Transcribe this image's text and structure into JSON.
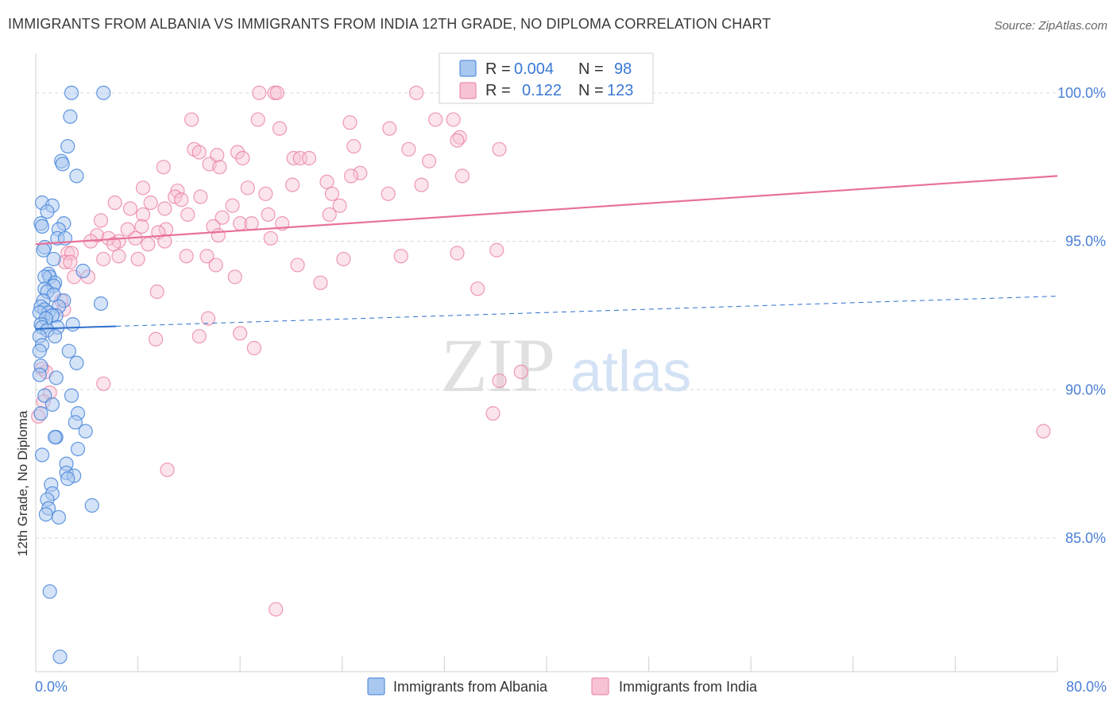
{
  "title": "IMMIGRANTS FROM ALBANIA VS IMMIGRANTS FROM INDIA 12TH GRADE, NO DIPLOMA CORRELATION CHART",
  "source": "Source: ZipAtlas.com",
  "watermark": {
    "zip": "ZIP",
    "atlas": "atlas"
  },
  "colors": {
    "albania_fill": "#a9c8f0",
    "albania_stroke": "#3f7fd9",
    "albania_line": "#2f6fce",
    "india_fill": "#f7c3d4",
    "india_stroke": "#e9799f",
    "india_line": "#e8709a",
    "tick_text": "#4a7fd6",
    "grid": "#d9d9d9"
  },
  "legend": {
    "rows": [
      {
        "r_label": "R =",
        "r_value": "0.004",
        "n_label": "N =",
        "n_value": "98"
      },
      {
        "r_label": "R =",
        "r_value": "0.122",
        "n_label": "N =",
        "n_value": "123"
      }
    ]
  },
  "chart_data": {
    "type": "scatter",
    "title": "IMMIGRANTS FROM ALBANIA VS IMMIGRANTS FROM INDIA 12TH GRADE, NO DIPLOMA CORRELATION CHART",
    "xlabel": "",
    "ylabel": "12th Grade, No Diploma",
    "xlim": [
      0,
      80
    ],
    "ylim": [
      80.5,
      101.0
    ],
    "x_tick_labels": [
      "0.0%",
      "80.0%"
    ],
    "y_ticks": [
      85,
      90,
      95,
      100
    ],
    "y_tick_labels": [
      "85.0%",
      "90.0%",
      "95.0%",
      "100.0%"
    ],
    "legend_position": "top-center",
    "series": [
      {
        "name": "Immigrants from Albania",
        "R": 0.004,
        "N": 98,
        "trend": {
          "x0": 0,
          "y0": 92.05,
          "x1": 80,
          "y1": 93.15,
          "solid_until": 6.3
        },
        "points": [
          [
            2.8,
            100.0
          ],
          [
            5.3,
            100.0
          ],
          [
            2.7,
            99.2
          ],
          [
            2.5,
            98.2
          ],
          [
            2.0,
            97.7
          ],
          [
            2.1,
            97.6
          ],
          [
            3.2,
            97.2
          ],
          [
            0.5,
            96.3
          ],
          [
            1.3,
            96.2
          ],
          [
            0.9,
            96.0
          ],
          [
            0.4,
            95.6
          ],
          [
            2.2,
            95.6
          ],
          [
            0.5,
            95.5
          ],
          [
            1.8,
            95.4
          ],
          [
            1.7,
            95.1
          ],
          [
            2.3,
            95.1
          ],
          [
            0.7,
            94.8
          ],
          [
            0.6,
            94.7
          ],
          [
            1.4,
            94.4
          ],
          [
            3.7,
            94.0
          ],
          [
            1.0,
            93.9
          ],
          [
            1.1,
            93.8
          ],
          [
            0.7,
            93.8
          ],
          [
            1.5,
            93.6
          ],
          [
            1.4,
            93.5
          ],
          [
            0.7,
            93.4
          ],
          [
            0.9,
            93.3
          ],
          [
            1.4,
            93.2
          ],
          [
            2.2,
            93.0
          ],
          [
            0.6,
            93.0
          ],
          [
            5.1,
            92.9
          ],
          [
            0.4,
            92.8
          ],
          [
            1.8,
            92.8
          ],
          [
            0.7,
            92.7
          ],
          [
            1.0,
            92.6
          ],
          [
            0.3,
            92.6
          ],
          [
            1.6,
            92.5
          ],
          [
            1.3,
            92.5
          ],
          [
            0.8,
            92.4
          ],
          [
            2.9,
            92.2
          ],
          [
            0.4,
            92.2
          ],
          [
            0.5,
            92.1
          ],
          [
            1.7,
            92.1
          ],
          [
            0.9,
            92.0
          ],
          [
            0.3,
            91.8
          ],
          [
            1.5,
            91.8
          ],
          [
            0.5,
            91.5
          ],
          [
            0.3,
            91.3
          ],
          [
            2.6,
            91.3
          ],
          [
            3.2,
            90.9
          ],
          [
            0.4,
            90.8
          ],
          [
            0.3,
            90.5
          ],
          [
            1.6,
            90.4
          ],
          [
            0.7,
            89.8
          ],
          [
            2.8,
            89.8
          ],
          [
            1.3,
            89.5
          ],
          [
            0.4,
            89.2
          ],
          [
            3.3,
            89.2
          ],
          [
            3.1,
            88.9
          ],
          [
            3.9,
            88.6
          ],
          [
            1.6,
            88.4
          ],
          [
            1.5,
            88.4
          ],
          [
            3.3,
            88.0
          ],
          [
            0.5,
            87.8
          ],
          [
            2.4,
            87.5
          ],
          [
            2.4,
            87.2
          ],
          [
            3.0,
            87.1
          ],
          [
            2.5,
            87.0
          ],
          [
            1.2,
            86.8
          ],
          [
            1.3,
            86.5
          ],
          [
            0.9,
            86.3
          ],
          [
            4.4,
            86.1
          ],
          [
            1.0,
            86.0
          ],
          [
            0.8,
            85.8
          ],
          [
            1.8,
            85.7
          ],
          [
            1.1,
            83.2
          ],
          [
            1.9,
            81.0
          ]
        ]
      },
      {
        "name": "Immigrants from India",
        "R": 0.122,
        "N": 123,
        "trend": {
          "x0": 0,
          "y0": 94.9,
          "x1": 80,
          "y1": 97.2
        },
        "points": [
          [
            17.5,
            100.0
          ],
          [
            18.7,
            100.0
          ],
          [
            29.8,
            100.0
          ],
          [
            18.9,
            100.0
          ],
          [
            12.2,
            99.1
          ],
          [
            17.4,
            99.1
          ],
          [
            24.6,
            99.0
          ],
          [
            31.3,
            99.1
          ],
          [
            32.7,
            99.1
          ],
          [
            19.1,
            98.8
          ],
          [
            27.7,
            98.8
          ],
          [
            33.2,
            98.5
          ],
          [
            33.0,
            98.4
          ],
          [
            24.9,
            98.2
          ],
          [
            12.4,
            98.1
          ],
          [
            15.8,
            98.0
          ],
          [
            12.8,
            98.0
          ],
          [
            14.2,
            97.9
          ],
          [
            29.2,
            98.1
          ],
          [
            36.3,
            98.1
          ],
          [
            16.2,
            97.8
          ],
          [
            20.2,
            97.8
          ],
          [
            20.7,
            97.8
          ],
          [
            21.4,
            97.8
          ],
          [
            30.8,
            97.7
          ],
          [
            13.6,
            97.6
          ],
          [
            14.4,
            97.5
          ],
          [
            10.0,
            97.5
          ],
          [
            25.4,
            97.3
          ],
          [
            24.7,
            97.2
          ],
          [
            33.4,
            97.2
          ],
          [
            22.8,
            97.0
          ],
          [
            20.1,
            96.9
          ],
          [
            30.2,
            96.9
          ],
          [
            8.4,
            96.8
          ],
          [
            11.1,
            96.7
          ],
          [
            16.6,
            96.8
          ],
          [
            18.0,
            96.6
          ],
          [
            23.2,
            96.6
          ],
          [
            27.6,
            96.6
          ],
          [
            12.9,
            96.5
          ],
          [
            10.9,
            96.5
          ],
          [
            11.4,
            96.4
          ],
          [
            9.0,
            96.3
          ],
          [
            6.2,
            96.3
          ],
          [
            7.4,
            96.1
          ],
          [
            10.1,
            96.1
          ],
          [
            15.4,
            96.2
          ],
          [
            23.8,
            96.2
          ],
          [
            8.4,
            95.9
          ],
          [
            11.9,
            95.9
          ],
          [
            18.2,
            95.9
          ],
          [
            14.6,
            95.8
          ],
          [
            23.0,
            95.9
          ],
          [
            5.1,
            95.7
          ],
          [
            13.9,
            95.5
          ],
          [
            16.0,
            95.6
          ],
          [
            16.9,
            95.6
          ],
          [
            19.3,
            95.6
          ],
          [
            8.3,
            95.5
          ],
          [
            7.2,
            95.4
          ],
          [
            10.2,
            95.4
          ],
          [
            9.6,
            95.3
          ],
          [
            4.8,
            95.2
          ],
          [
            7.8,
            95.1
          ],
          [
            14.3,
            95.2
          ],
          [
            5.7,
            95.1
          ],
          [
            4.3,
            95.0
          ],
          [
            6.5,
            95.0
          ],
          [
            10.1,
            95.0
          ],
          [
            6.1,
            94.9
          ],
          [
            8.8,
            94.9
          ],
          [
            18.4,
            95.1
          ],
          [
            2.5,
            94.6
          ],
          [
            2.8,
            94.6
          ],
          [
            6.5,
            94.5
          ],
          [
            11.8,
            94.5
          ],
          [
            13.4,
            94.5
          ],
          [
            5.3,
            94.4
          ],
          [
            8.0,
            94.4
          ],
          [
            24.1,
            94.4
          ],
          [
            28.6,
            94.5
          ],
          [
            33.0,
            94.6
          ],
          [
            36.1,
            94.7
          ],
          [
            2.3,
            94.3
          ],
          [
            2.7,
            94.3
          ],
          [
            14.1,
            94.2
          ],
          [
            20.5,
            94.2
          ],
          [
            3.0,
            93.8
          ],
          [
            4.1,
            93.8
          ],
          [
            15.6,
            93.8
          ],
          [
            22.3,
            93.6
          ],
          [
            34.6,
            93.4
          ],
          [
            9.5,
            93.3
          ],
          [
            2.0,
            93.0
          ],
          [
            2.2,
            92.7
          ],
          [
            13.5,
            92.4
          ],
          [
            16.0,
            91.9
          ],
          [
            12.8,
            91.8
          ],
          [
            9.4,
            91.7
          ],
          [
            17.1,
            91.4
          ],
          [
            0.5,
            90.7
          ],
          [
            0.8,
            90.6
          ],
          [
            5.3,
            90.2
          ],
          [
            38.0,
            90.6
          ],
          [
            36.3,
            90.3
          ],
          [
            1.1,
            89.9
          ],
          [
            0.6,
            89.6
          ],
          [
            0.2,
            89.1
          ],
          [
            35.8,
            89.2
          ],
          [
            78.9,
            88.6
          ],
          [
            10.3,
            87.3
          ],
          [
            18.8,
            82.6
          ]
        ]
      }
    ]
  },
  "bottom_legend": {
    "items": [
      {
        "label": "Immigrants from Albania"
      },
      {
        "label": "Immigrants from India"
      }
    ]
  }
}
